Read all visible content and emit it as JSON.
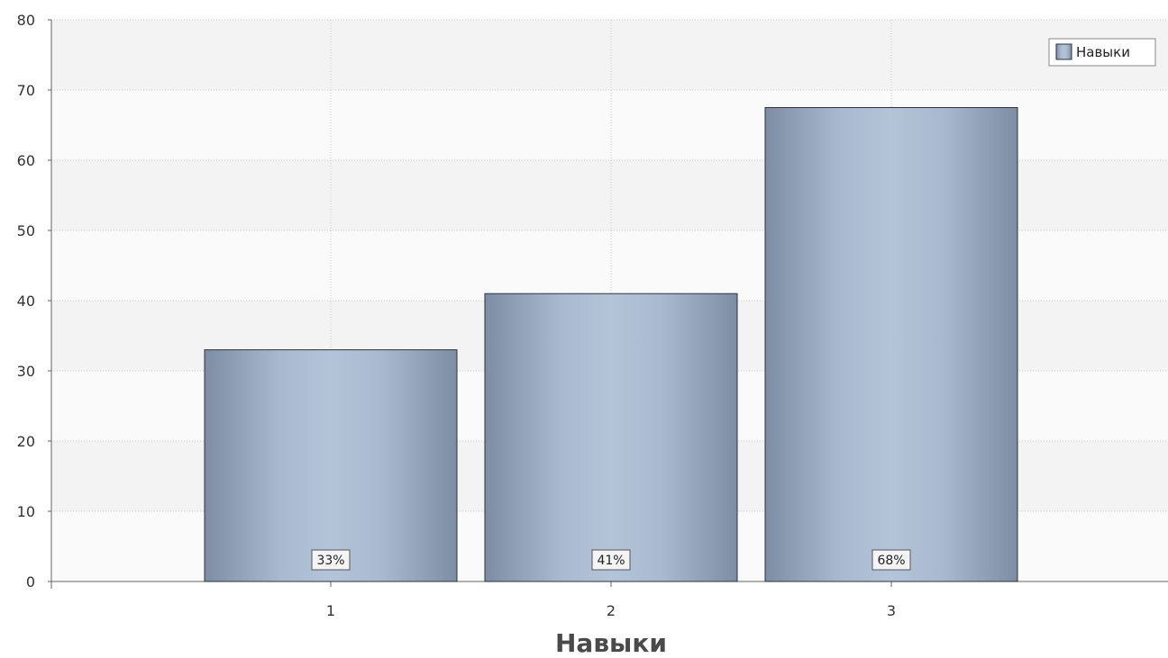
{
  "chart_data": {
    "type": "bar",
    "categories": [
      "1",
      "2",
      "3"
    ],
    "values": [
      33,
      41,
      67.5
    ],
    "data_labels": [
      "33%",
      "41%",
      "68%"
    ],
    "xlabel": "Навыки",
    "ylabel": "",
    "ylim": [
      0,
      80
    ],
    "yticks": [
      0,
      10,
      20,
      30,
      40,
      50,
      60,
      70,
      80
    ],
    "grid": true,
    "legend": {
      "entries": [
        "Навыки"
      ],
      "placement": "top-right"
    },
    "colors": {
      "bar_edge": "#8090a6",
      "bar_center": "#b3c3d8",
      "bar_outline": "#2a3340"
    }
  }
}
